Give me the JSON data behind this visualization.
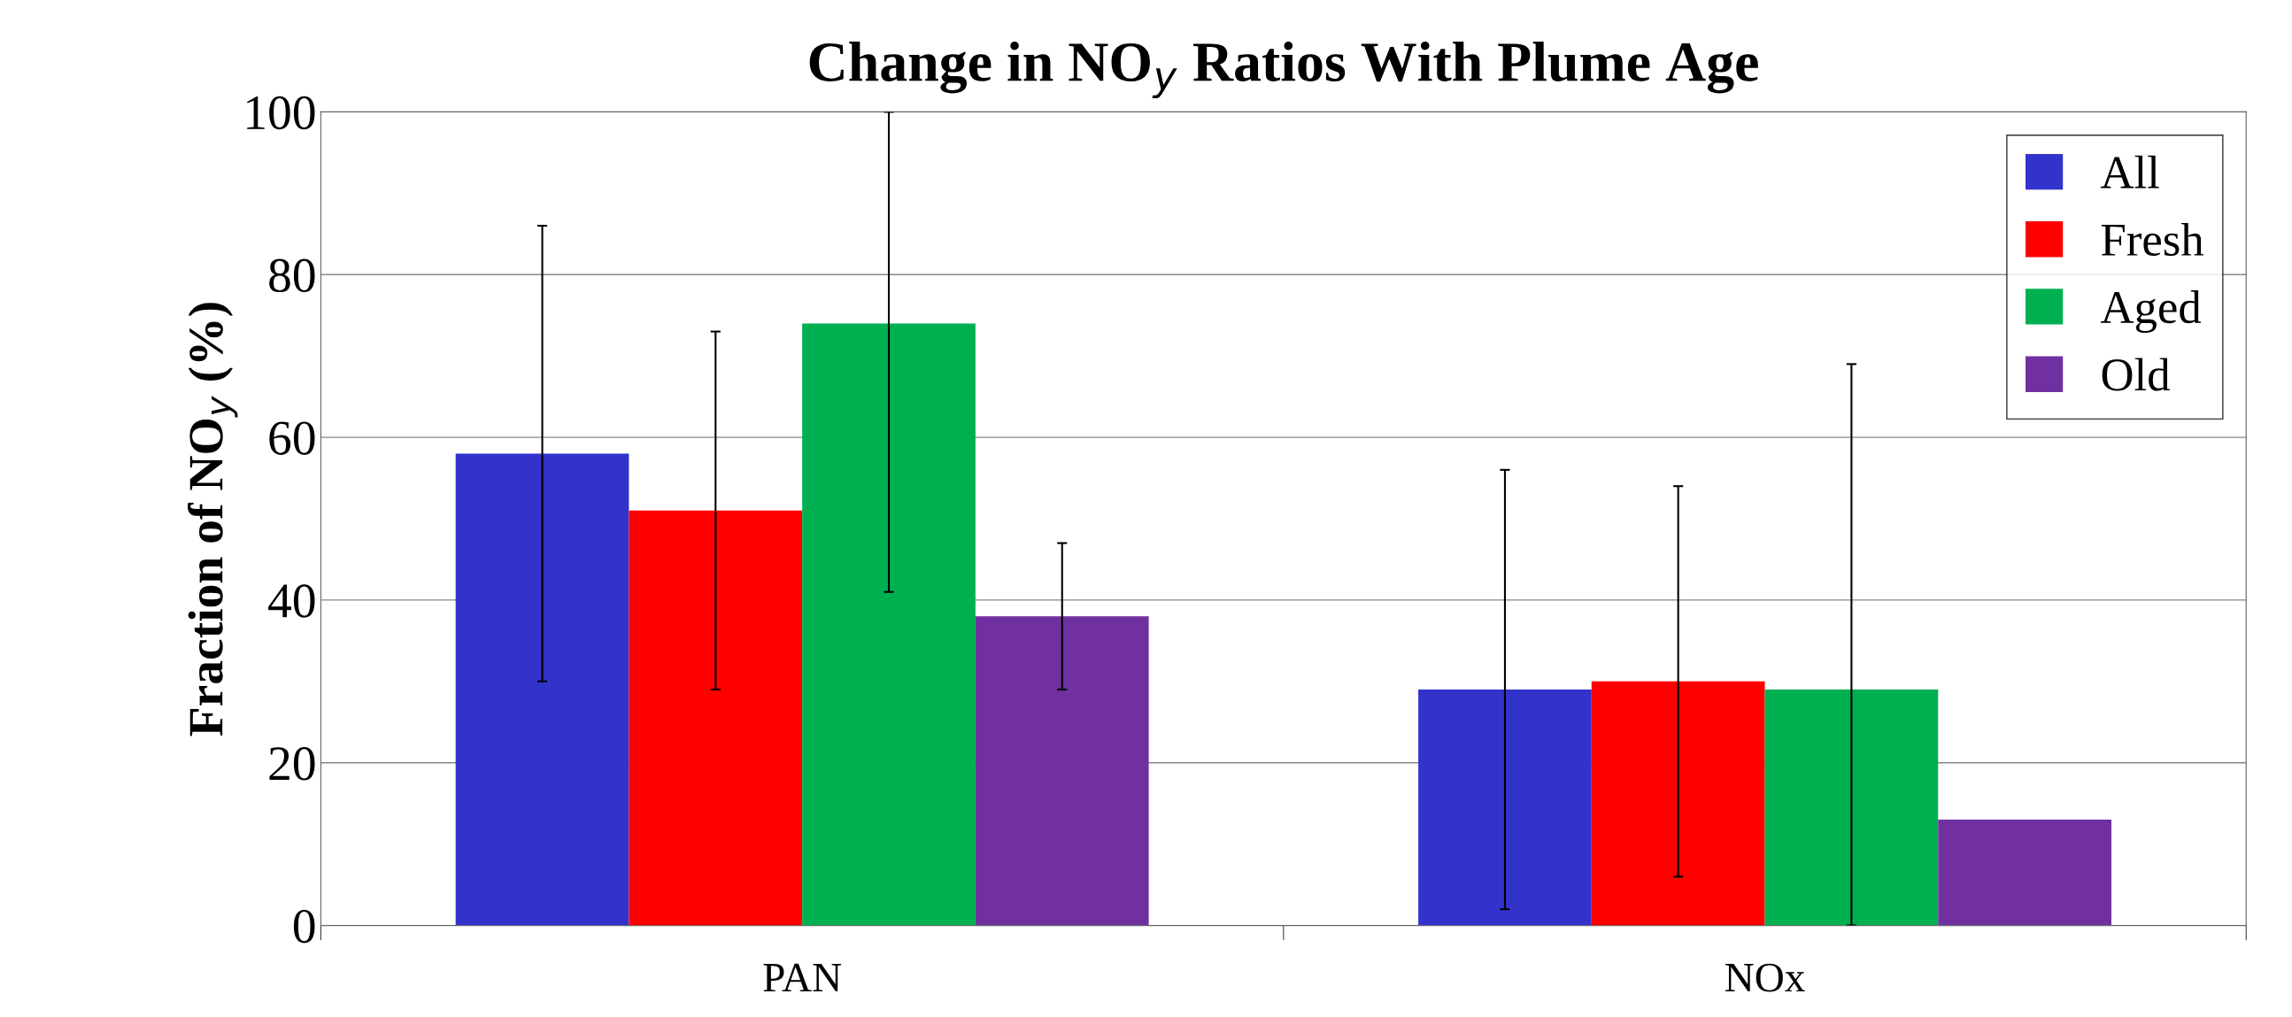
{
  "chart_data": {
    "type": "bar",
    "title": "Change in NO$_{y}$ Ratios With Plume Age",
    "ylabel": "Fraction of NO$_{y}$ (%)",
    "categories": [
      "PAN",
      "NOx"
    ],
    "series": [
      {
        "name": "All",
        "color": "#3333cc",
        "values": [
          58,
          29
        ],
        "errors": [
          28,
          27
        ]
      },
      {
        "name": "Fresh",
        "color": "#ff0000",
        "values": [
          51,
          30
        ],
        "errors": [
          22,
          24
        ]
      },
      {
        "name": "Aged",
        "color": "#00b050",
        "values": [
          74,
          29
        ],
        "errors": [
          [
            41,
            100
          ],
          [
            0,
            69
          ]
        ]
      },
      {
        "name": "Old",
        "color": "#7030a0",
        "values": [
          38,
          13
        ],
        "errors": [
          9,
          null
        ]
      }
    ],
    "ylim": [
      0,
      100
    ],
    "yticks": [
      0,
      20,
      40,
      60,
      80,
      100
    ],
    "grid": "y",
    "legend": "top right"
  }
}
